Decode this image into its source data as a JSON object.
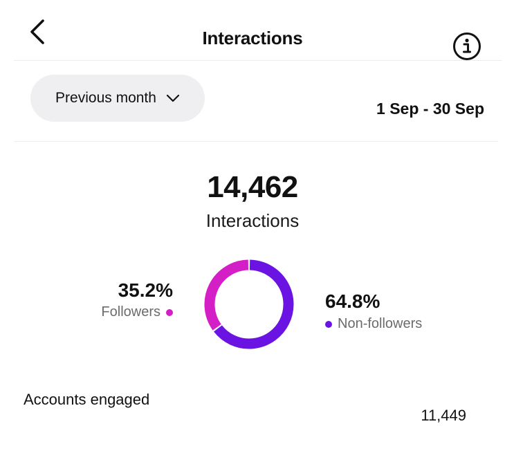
{
  "header": {
    "title": "Interactions"
  },
  "filter": {
    "period_label": "Previous month",
    "date_range": "1 Sep - 30 Sep"
  },
  "summary": {
    "total": "14,462",
    "label": "Interactions"
  },
  "breakdown": {
    "followers": {
      "percent_text": "35.2%",
      "label": "Followers",
      "value": 35.2,
      "color": "#d51fc6"
    },
    "non_followers": {
      "percent_text": "64.8%",
      "label": "Non-followers",
      "value": 64.8,
      "color": "#6a13e3"
    }
  },
  "accounts_engaged": {
    "label": "Accounts engaged",
    "value": "11,449"
  }
}
